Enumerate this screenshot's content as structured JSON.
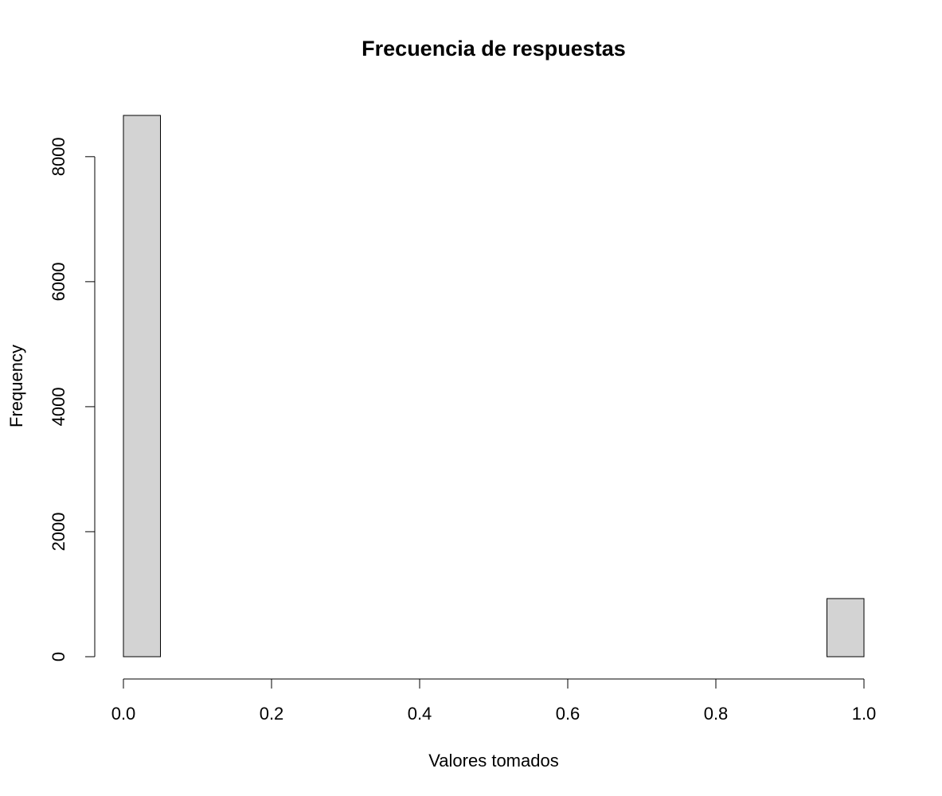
{
  "chart_data": {
    "type": "bar",
    "title": "Frecuencia de respuestas",
    "xlabel": "Valores tomados",
    "ylabel": "Frequency",
    "bins": [
      {
        "x0": 0.0,
        "x1": 0.05,
        "value": 8660
      },
      {
        "x0": 0.95,
        "x1": 1.0,
        "value": 930
      }
    ],
    "x_ticks": [
      0.0,
      0.2,
      0.4,
      0.6,
      0.8,
      1.0
    ],
    "x_tick_labels": [
      "0.0",
      "0.2",
      "0.4",
      "0.6",
      "0.8",
      "1.0"
    ],
    "y_ticks": [
      0,
      2000,
      4000,
      6000,
      8000
    ],
    "y_tick_labels": [
      "0",
      "2000",
      "4000",
      "6000",
      "8000"
    ],
    "xlim": [
      0,
      1
    ],
    "ylim": [
      0,
      8660
    ],
    "grid": false,
    "legend": "none",
    "colors": {
      "bar_fill": "#d3d3d3",
      "bar_stroke": "#000000"
    }
  }
}
